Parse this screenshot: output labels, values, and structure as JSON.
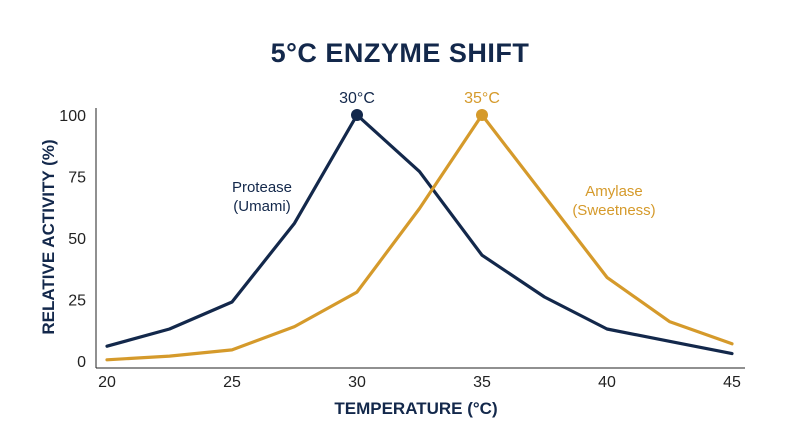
{
  "colors": {
    "navy": "#13284b",
    "gold": "#d59a2b",
    "axis": "#222222"
  },
  "chart_data": {
    "type": "line",
    "title": "5°C ENZYME SHIFT",
    "xlabel": "TEMPERATURE (°C)",
    "ylabel": "RELATIVE ACTIVITY (%)",
    "xlim": [
      20,
      45
    ],
    "ylim": [
      0,
      100
    ],
    "xticks": [
      "20",
      "25",
      "30",
      "35",
      "40",
      "45"
    ],
    "yticks": [
      "0",
      "25",
      "50",
      "75",
      "100"
    ],
    "grid": false,
    "series": [
      {
        "name": "Protease (Umami)",
        "label_lines": [
          "Protease",
          "(Umami)"
        ],
        "color": "#13284b",
        "x": [
          20,
          22.5,
          25,
          27.5,
          30,
          32.5,
          35,
          37.5,
          40,
          42.5,
          45
        ],
        "y": [
          6,
          13,
          24,
          56,
          100,
          77,
          43,
          26,
          13,
          8,
          3
        ],
        "peak": {
          "x": 30,
          "y": 100,
          "label": "30°C"
        }
      },
      {
        "name": "Amylase (Sweetness)",
        "label_lines": [
          "Amylase",
          "(Sweetness)"
        ],
        "color": "#d59a2b",
        "x": [
          20,
          22.5,
          25,
          27.5,
          30,
          32.5,
          35,
          37.5,
          40,
          42.5,
          45
        ],
        "y": [
          0.5,
          2,
          4.5,
          14,
          28,
          62,
          100,
          67,
          34,
          16,
          7
        ],
        "peak": {
          "x": 35,
          "y": 100,
          "label": "35°C"
        }
      }
    ]
  }
}
